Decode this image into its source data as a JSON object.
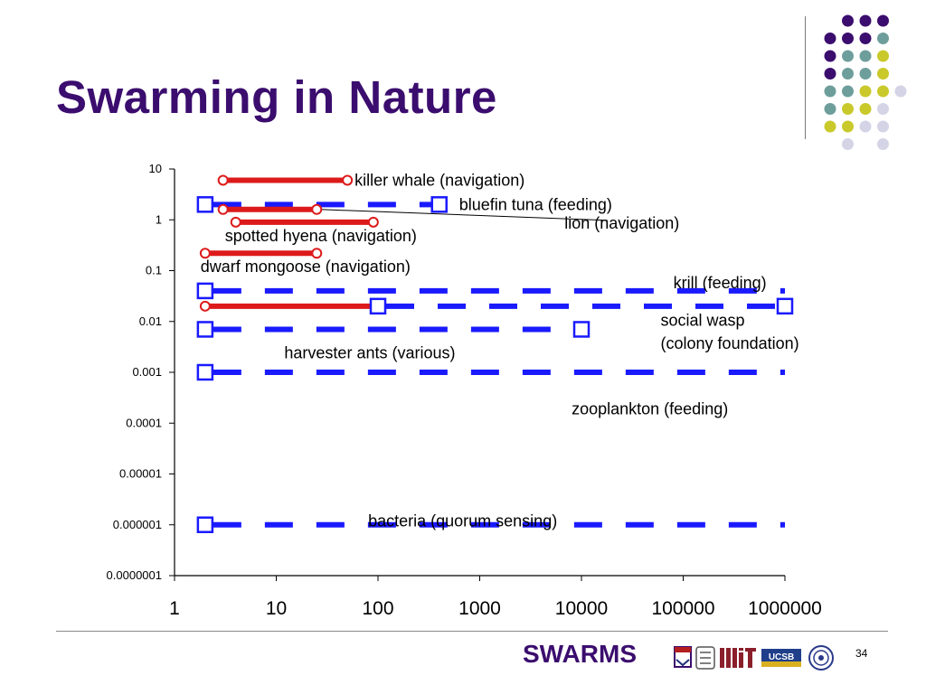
{
  "slide": {
    "title": "Swarming in Nature",
    "page_number": "34"
  },
  "footer": {
    "brand": "SWARMS"
  },
  "colors": {
    "title": "#3b0d6e",
    "dot_purple": "#3b0d6e",
    "dot_teal": "#6e9e9c",
    "dot_yellow": "#c9c92b",
    "dot_lavender": "#d4d4e6",
    "feeding_blue": "#1a1aff",
    "navigation_red": "#dd1a1a"
  },
  "chart_data": {
    "type": "range",
    "x_scale": "log",
    "y_scale": "log",
    "xlim": [
      1,
      1000000
    ],
    "ylim": [
      1e-07,
      10
    ],
    "x_ticks": [
      {
        "value": 1,
        "label": "1"
      },
      {
        "value": 10,
        "label": "10"
      },
      {
        "value": 100,
        "label": "100"
      },
      {
        "value": 1000,
        "label": "1000"
      },
      {
        "value": 10000,
        "label": "10000"
      },
      {
        "value": 100000,
        "label": "100000"
      },
      {
        "value": 1000000,
        "label": "1000000"
      }
    ],
    "y_ticks": [
      {
        "value": 10,
        "label": "10"
      },
      {
        "value": 1,
        "label": "1"
      },
      {
        "value": 0.1,
        "label": "0.1"
      },
      {
        "value": 0.01,
        "label": "0.01"
      },
      {
        "value": 0.001,
        "label": "0.001"
      },
      {
        "value": 0.0001,
        "label": "0.0001"
      },
      {
        "value": 1e-05,
        "label": "0.00001"
      },
      {
        "value": 1e-06,
        "label": "0.000001"
      },
      {
        "value": 1e-07,
        "label": "0.0000001"
      }
    ],
    "series": [
      {
        "name": "killer whale (navigation)",
        "style": "navigation",
        "x_start": 3,
        "x_end": 50,
        "y": 6,
        "end_marker_start": true,
        "end_marker_end": true
      },
      {
        "name": "bluefin tuna (feeding)",
        "style": "feeding",
        "x_start": 2,
        "x_end": 400,
        "y": 2,
        "end_marker_start": true,
        "end_marker_end": true
      },
      {
        "name": "lion (navigation)",
        "style": "navigation",
        "x_start": 3,
        "x_end": 25,
        "y": 1.6,
        "end_marker_start": true,
        "end_marker_end": true
      },
      {
        "name": "spotted hyena (navigation)",
        "style": "navigation",
        "x_start": 4,
        "x_end": 90,
        "y": 0.9,
        "end_marker_start": true,
        "end_marker_end": true
      },
      {
        "name": "dwarf mongoose (navigation)",
        "style": "navigation",
        "x_start": 2,
        "x_end": 25,
        "y": 0.22,
        "end_marker_start": true,
        "end_marker_end": true
      },
      {
        "name": "krill (feeding)",
        "style": "feeding",
        "x_start": 2,
        "x_end": 1000000,
        "y": 0.04,
        "end_marker_start": true,
        "end_marker_end": false
      },
      {
        "name": "",
        "style": "navigation",
        "x_start": 2,
        "x_end": 100,
        "y": 0.02,
        "end_marker_start": true,
        "end_marker_end": false
      },
      {
        "name": "social wasp (colony foundation)",
        "style": "feeding",
        "x_start": 100,
        "x_end": 1000000,
        "y": 0.02,
        "end_marker_start": true,
        "end_marker_end": true
      },
      {
        "name": "harvester ants (various)",
        "style": "feeding",
        "x_start": 2,
        "x_end": 10000,
        "y": 0.007,
        "end_marker_start": true,
        "end_marker_end": true
      },
      {
        "name": "zooplankton (feeding)",
        "style": "feeding",
        "x_start": 2,
        "x_end": 1000000,
        "y": 0.001,
        "end_marker_start": true,
        "end_marker_end": false
      },
      {
        "name": "bacteria (quorum sensing)",
        "style": "feeding",
        "x_start": 2,
        "x_end": 1000000,
        "y": 1e-06,
        "end_marker_start": true,
        "end_marker_end": false
      }
    ],
    "annotations": [
      {
        "text": "killer whale (navigation)",
        "x": 50,
        "y": 6,
        "anchor": "start",
        "dx": 8
      },
      {
        "text": "bluefin tuna (feeding)",
        "x": 400,
        "y": 2,
        "anchor": "start",
        "dx": 22
      },
      {
        "text": "lion (navigation)",
        "x": 25000,
        "y": 0.85,
        "anchor": "middle",
        "dx": 0
      },
      {
        "text": "spotted hyena (navigation)",
        "x": 4,
        "y": 0.48,
        "anchor": "start",
        "dx": -12
      },
      {
        "text": "dwarf mongoose (navigation)",
        "x": 1.8,
        "y": 0.12,
        "anchor": "start",
        "dx": 0
      },
      {
        "text": "krill (feeding)",
        "x": 80000,
        "y": 0.057,
        "anchor": "start",
        "dx": 0
      },
      {
        "text": "social wasp",
        "x": 60000,
        "y": 0.0105,
        "anchor": "start",
        "dx": 0
      },
      {
        "text": "(colony foundation)",
        "x": 60000,
        "y": 0.0037,
        "anchor": "start",
        "dx": 0
      },
      {
        "text": "harvester ants (various)",
        "x": 12,
        "y": 0.0024,
        "anchor": "start",
        "dx": 0
      },
      {
        "text": "zooplankton (feeding)",
        "x": 8000,
        "y": 0.00019,
        "anchor": "start",
        "dx": 0
      },
      {
        "text": "bacteria (quorum sensing)",
        "x": 80,
        "y": 1.2e-06,
        "anchor": "start",
        "dx": 0
      }
    ],
    "leader_line": {
      "from_x": 25,
      "from_y": 1.6,
      "to_x": 25000,
      "to_y": 0.9
    }
  }
}
